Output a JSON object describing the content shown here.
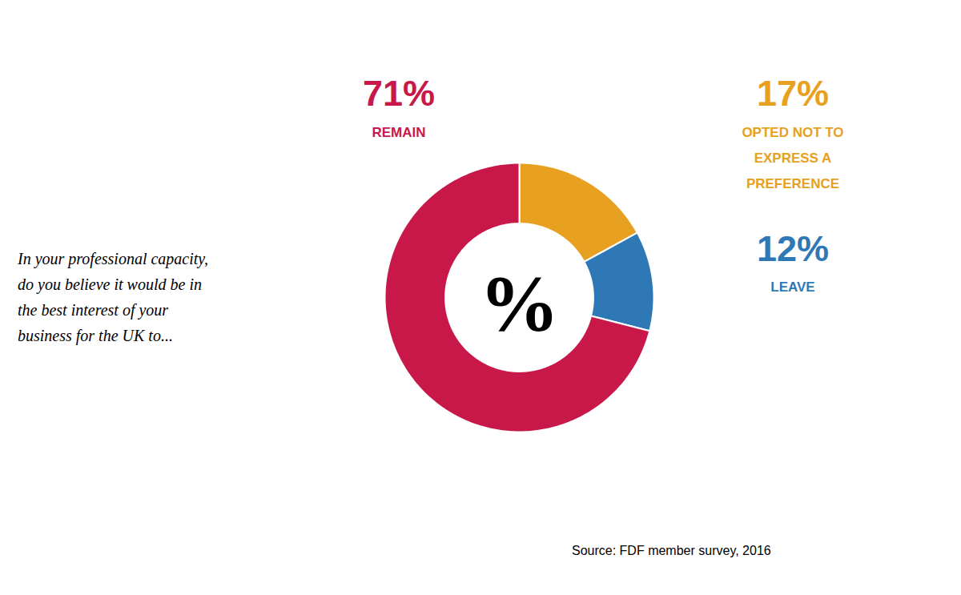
{
  "chart_data": {
    "type": "donut",
    "categories": [
      "OPTED NOT TO\nEXPRESS A\nPREFERENCE",
      "LEAVE",
      "REMAIN"
    ],
    "values": [
      17,
      12,
      71
    ],
    "value_labels": [
      "17%",
      "12%",
      "71%"
    ],
    "data_labels": true,
    "colors": [
      "#E8A020",
      "#2E78B5",
      "#C8184A"
    ],
    "annotations": [
      "%",
      "In your professional capacity,\ndo you believe it would be in\nthe best interest of your\nbusiness for the UK to...",
      "Source: FDF member survey, 2016"
    ]
  }
}
